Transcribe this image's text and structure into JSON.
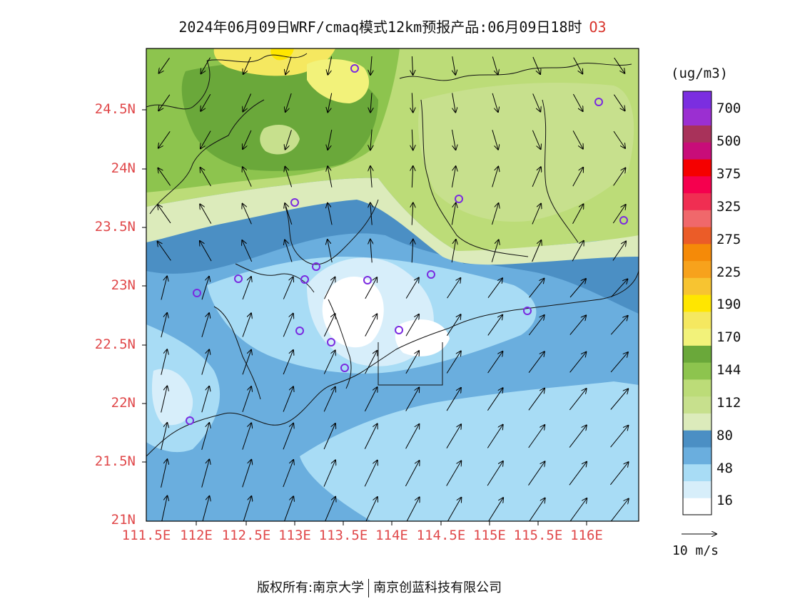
{
  "title": "2024年06月09日WRF/cmaq模式12km预报产品:06月09日18时",
  "species": "O3",
  "unit_label": "(ug/m3)",
  "wind_scale_label": "10 m/s",
  "footer": {
    "owner": "版权所有:南京大学",
    "company": "南京创蓝科技有限公司"
  },
  "lat_labels": [
    "24.5N",
    "24N",
    "23.5N",
    "23N",
    "22.5N",
    "22N",
    "21.5N",
    "21N"
  ],
  "lon_labels": [
    "111.5E",
    "112E",
    "112.5E",
    "113E",
    "113.5E",
    "114E",
    "114.5E",
    "115E",
    "115.5E",
    "116E"
  ],
  "colorbar": {
    "colors": [
      "#ffffff",
      "#d7eefa",
      "#a8dcf5",
      "#6aaede",
      "#4b8fc4",
      "#dcebbb",
      "#c7e08d",
      "#bcdc78",
      "#8dc44e",
      "#6aa83a",
      "#f2f27a",
      "#f5e860",
      "#ffe600",
      "#f7c431",
      "#f7a21c",
      "#f58a08",
      "#eb5c28",
      "#f0686b",
      "#f02e52",
      "#f5004e",
      "#f50000",
      "#c80d79",
      "#a8325a",
      "#9b2fd1",
      "#7b2ee0"
    ],
    "labels": [
      "16",
      "48",
      "80",
      "112",
      "144",
      "170",
      "190",
      "225",
      "275",
      "325",
      "375",
      "500",
      "700"
    ]
  },
  "stations": 18
}
